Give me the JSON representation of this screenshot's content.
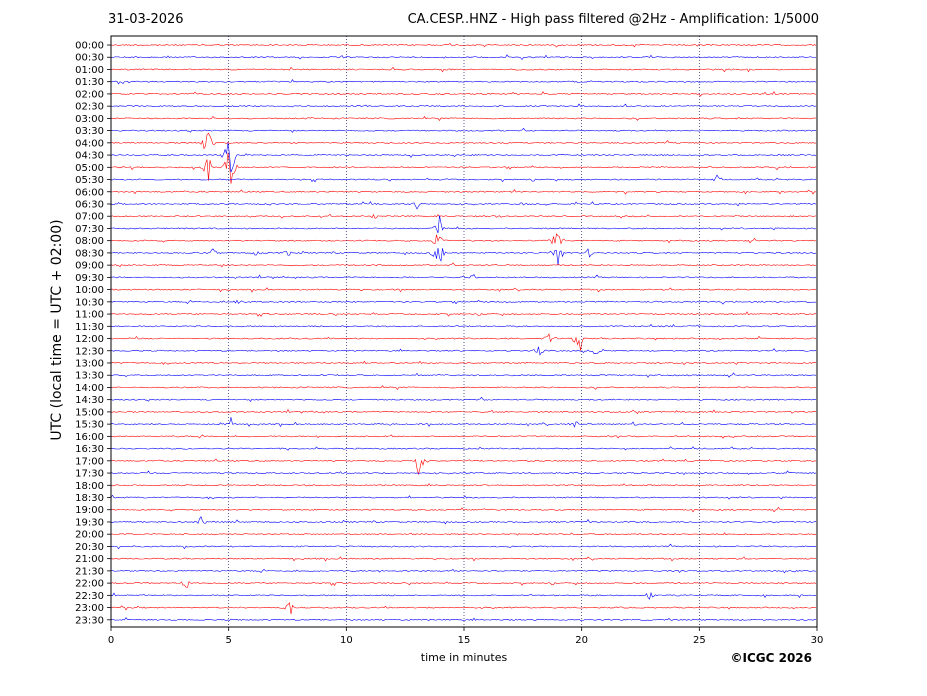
{
  "date_label": "31-03-2026",
  "title": "CA.CESP..HNZ - High pass filtered @2Hz - Amplification: 1/5000",
  "credit": "©ICGC 2026",
  "chart_data": {
    "type": "line",
    "title": "CA.CESP..HNZ - High pass filtered @2Hz - Amplification: 1/5000",
    "xlabel": "time in minutes",
    "ylabel": "UTC (local time = UTC + 02:00)",
    "xlim": [
      0,
      30
    ],
    "xticks": [
      "0",
      "5",
      "10",
      "15",
      "20",
      "25",
      "30"
    ],
    "vertical_gridlines_at": [
      5,
      10,
      15,
      20,
      25
    ],
    "grid": "vertical dotted",
    "row_labels": [
      "00:00",
      "00:30",
      "01:00",
      "01:30",
      "02:00",
      "02:30",
      "03:00",
      "03:30",
      "04:00",
      "04:30",
      "05:00",
      "05:30",
      "06:00",
      "06:30",
      "07:00",
      "07:30",
      "08:00",
      "08:30",
      "09:00",
      "09:30",
      "10:00",
      "10:30",
      "11:00",
      "11:30",
      "12:00",
      "12:30",
      "13:00",
      "13:30",
      "14:00",
      "14:30",
      "15:00",
      "15:30",
      "16:00",
      "16:30",
      "17:00",
      "17:30",
      "18:00",
      "18:30",
      "19:00",
      "19:30",
      "20:00",
      "20:30",
      "21:00",
      "21:30",
      "22:00",
      "22:30",
      "23:00",
      "23:30"
    ],
    "trace_colors": [
      "#ff0000",
      "#0000ff"
    ],
    "events": [
      {
        "row": 8,
        "minute": 4.1,
        "amp": 2.2
      },
      {
        "row": 10,
        "minute": 4.1,
        "amp": 1.8
      },
      {
        "row": 9,
        "minute": 5.05,
        "amp": 4.5
      },
      {
        "row": 10,
        "minute": 5.05,
        "amp": 3.5
      },
      {
        "row": 11,
        "minute": 25.8,
        "amp": 0.6
      },
      {
        "row": 13,
        "minute": 13.0,
        "amp": 0.5
      },
      {
        "row": 13,
        "minute": 17.4,
        "amp": 0.5
      },
      {
        "row": 14,
        "minute": 11.2,
        "amp": 0.4
      },
      {
        "row": 14,
        "minute": 16.6,
        "amp": 0.4
      },
      {
        "row": 15,
        "minute": 14.0,
        "amp": 1.8
      },
      {
        "row": 16,
        "minute": 13.9,
        "amp": 1.5
      },
      {
        "row": 17,
        "minute": 13.9,
        "amp": 2.5
      },
      {
        "row": 17,
        "minute": 18.95,
        "amp": 2.6
      },
      {
        "row": 16,
        "minute": 18.95,
        "amp": 1.8
      },
      {
        "row": 17,
        "minute": 7.5,
        "amp": 0.5
      },
      {
        "row": 17,
        "minute": 4.3,
        "amp": 0.5
      },
      {
        "row": 17,
        "minute": 6.2,
        "amp": 0.5
      },
      {
        "row": 17,
        "minute": 20.3,
        "amp": 0.5
      },
      {
        "row": 19,
        "minute": 15.4,
        "amp": 0.5
      },
      {
        "row": 21,
        "minute": 5.5,
        "amp": 0.5
      },
      {
        "row": 24,
        "minute": 18.6,
        "amp": 0.8
      },
      {
        "row": 24,
        "minute": 19.9,
        "amp": 2.2
      },
      {
        "row": 25,
        "minute": 18.2,
        "amp": 0.5
      },
      {
        "row": 25,
        "minute": 20.6,
        "amp": 0.5
      },
      {
        "row": 31,
        "minute": 5.1,
        "amp": 0.6
      },
      {
        "row": 31,
        "minute": 19.7,
        "amp": 0.5
      },
      {
        "row": 31,
        "minute": 22.2,
        "amp": 0.4
      },
      {
        "row": 34,
        "minute": 13.1,
        "amp": 2.0
      },
      {
        "row": 39,
        "minute": 3.8,
        "amp": 0.7
      },
      {
        "row": 44,
        "minute": 3.2,
        "amp": 0.7
      },
      {
        "row": 45,
        "minute": 22.9,
        "amp": 0.7
      },
      {
        "row": 46,
        "minute": 7.6,
        "amp": 0.9
      }
    ]
  }
}
